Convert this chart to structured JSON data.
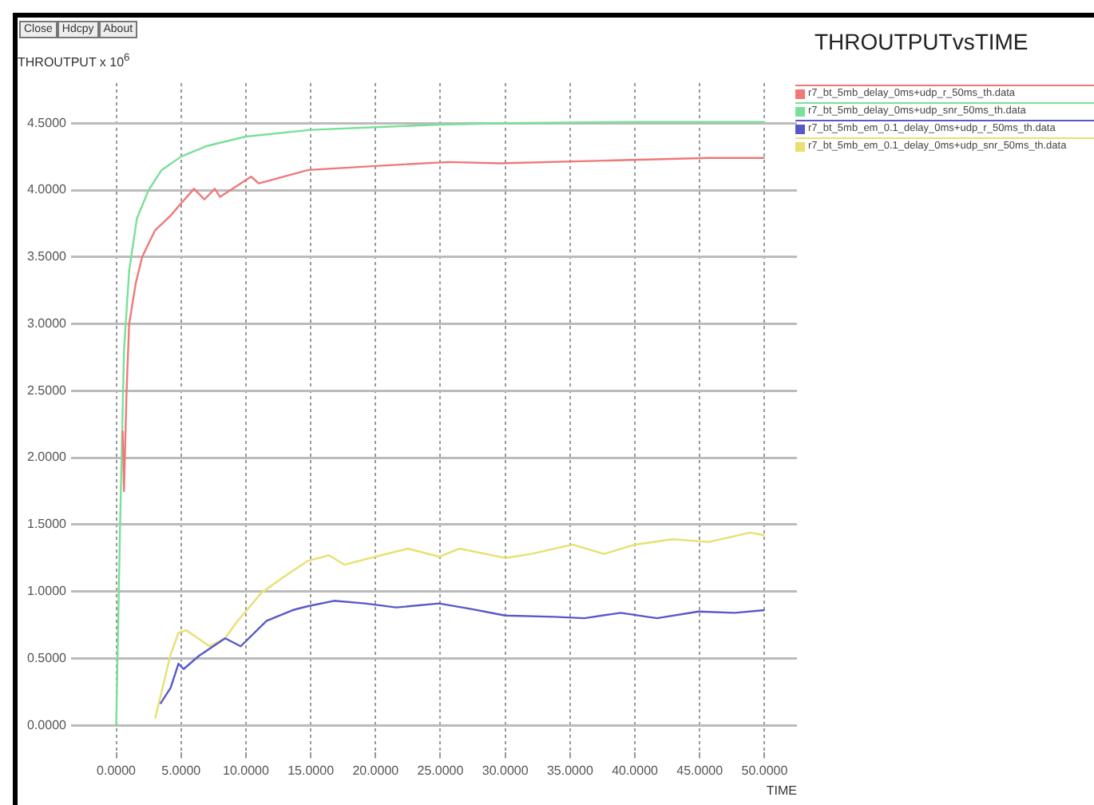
{
  "chart_data": {
    "type": "line",
    "title": "THROUTPUTvsTIME",
    "xlabel": "TIME",
    "ylabel": "THROUTPUT x 10$^{6}$",
    "annotations": [
      "Close",
      "Hdcpy",
      "About"
    ],
    "xlim": [
      -2.5,
      52.5
    ],
    "ylim": [
      -0.2,
      4.8
    ],
    "xticks": [
      {
        "value": 0,
        "label": "0.0000"
      },
      {
        "value": 5,
        "label": "5.0000"
      },
      {
        "value": 10,
        "label": "10.0000"
      },
      {
        "value": 15,
        "label": "15.0000"
      },
      {
        "value": 20,
        "label": "20.0000"
      },
      {
        "value": 25,
        "label": "25.0000"
      },
      {
        "value": 30,
        "label": "30.0000"
      },
      {
        "value": 35,
        "label": "35.0000"
      },
      {
        "value": 40,
        "label": "40.0000"
      },
      {
        "value": 45,
        "label": "45.0000"
      },
      {
        "value": 50,
        "label": "50.0000"
      }
    ],
    "yticks": [
      {
        "value": 0,
        "label": "0.0000"
      },
      {
        "value": 0.5,
        "label": "0.5000"
      },
      {
        "value": 1,
        "label": "1.0000"
      },
      {
        "value": 1.5,
        "label": "1.5000"
      },
      {
        "value": 2,
        "label": "2.0000"
      },
      {
        "value": 2.5,
        "label": "2.5000"
      },
      {
        "value": 3,
        "label": "3.0000"
      },
      {
        "value": 3.5,
        "label": "3.5000"
      },
      {
        "value": 4,
        "label": "4.0000"
      },
      {
        "value": 4.5,
        "label": "4.5000"
      }
    ],
    "grid": true,
    "legend": "top right",
    "marker": "none",
    "line_style": "solid",
    "series": [
      {
        "name": "r7_bt_5mb_delay_0ms+udp_r_50ms_th.data",
        "color": "#f07878",
        "x": [
          0.5,
          0.6,
          0.8,
          1,
          1.5,
          2,
          3,
          4.2,
          5,
          6,
          6.8,
          7.6,
          8,
          9.6,
          10.4,
          11,
          14.8,
          20,
          25.6,
          29.6,
          37.6,
          41.6,
          45.7,
          50
        ],
        "values": [
          2.2,
          1.75,
          2.5,
          3.0,
          3.3,
          3.5,
          3.7,
          3.81,
          3.9,
          4.01,
          3.93,
          4.01,
          3.95,
          4.05,
          4.1,
          4.05,
          4.15,
          4.18,
          4.21,
          4.2,
          4.22,
          4.23,
          4.24,
          4.24
        ]
      },
      {
        "name": "r7_bt_5mb_delay_0ms+udp_snr_50ms_th.data",
        "color": "#78e098",
        "x": [
          0,
          0.3,
          0.6,
          1,
          1.6,
          2.5,
          3.5,
          5,
          7,
          10,
          15,
          20,
          25,
          30,
          40,
          50
        ],
        "values": [
          0,
          1.5,
          2.8,
          3.4,
          3.79,
          4.0,
          4.15,
          4.25,
          4.33,
          4.4,
          4.45,
          4.47,
          4.49,
          4.5,
          4.51,
          4.51
        ]
      },
      {
        "name": "r7_bt_5mb_em_0.1_delay_0ms+udp_r_50ms_th.data",
        "color": "#5858c8",
        "x": [
          3.4,
          4.2,
          4.8,
          5.2,
          6.4,
          8.4,
          9.6,
          11.6,
          13.6,
          14.8,
          16.8,
          19.2,
          21.6,
          24.9,
          27.3,
          30,
          33.8,
          36.1,
          38.9,
          41.7,
          44.9,
          47.7,
          50
        ],
        "values": [
          0.16,
          0.28,
          0.46,
          0.42,
          0.52,
          0.65,
          0.59,
          0.78,
          0.86,
          0.89,
          0.93,
          0.91,
          0.88,
          0.91,
          0.87,
          0.82,
          0.81,
          0.8,
          0.84,
          0.8,
          0.85,
          0.84,
          0.86
        ]
      },
      {
        "name": "r7_bt_5mb_em_0.1_delay_0ms+udp_snr_50ms_th.data",
        "color": "#e8e070",
        "x": [
          3,
          4.2,
          4.8,
          5.4,
          7.2,
          8.4,
          9.2,
          11.2,
          12.8,
          14.8,
          16.4,
          17.6,
          20,
          22.5,
          24.9,
          26.5,
          30,
          32,
          35.2,
          37.6,
          40,
          42.9,
          45.7,
          48.9,
          50
        ],
        "values": [
          0.05,
          0.53,
          0.69,
          0.71,
          0.59,
          0.65,
          0.76,
          0.99,
          1.1,
          1.23,
          1.27,
          1.2,
          1.26,
          1.32,
          1.26,
          1.32,
          1.25,
          1.28,
          1.35,
          1.28,
          1.35,
          1.39,
          1.37,
          1.44,
          1.42
        ]
      }
    ]
  }
}
